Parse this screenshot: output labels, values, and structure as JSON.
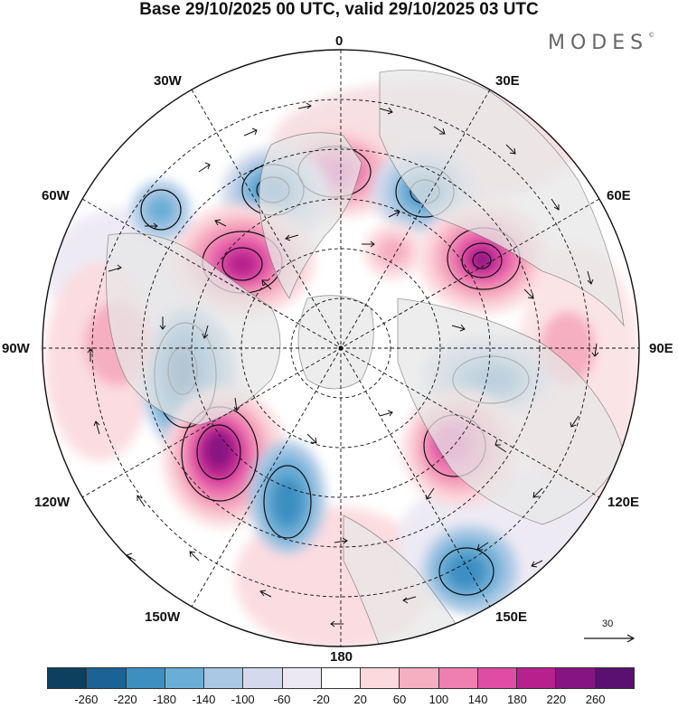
{
  "title": "Base 29/10/2025 00 UTC, valid 29/10/2025 03 UTC",
  "brand": "MODES",
  "brand_mark": "©",
  "longitude_labels": {
    "lon_0": "0",
    "lon_30e": "30E",
    "lon_60e": "60E",
    "lon_90e": "90E",
    "lon_120e": "120E",
    "lon_150e": "150E",
    "lon_180": "180",
    "lon_150w": "150W",
    "lon_120w": "120W",
    "lon_90w": "90W",
    "lon_60w": "60W",
    "lon_30w": "30W"
  },
  "reference_vector": {
    "value": "30"
  },
  "colorbar": {
    "colors": [
      "#0d3f5f",
      "#1a6394",
      "#3d8fc2",
      "#6aaed6",
      "#a8c8e4",
      "#d2daeb",
      "#ebe8f3",
      "#ffffff",
      "#fbd9dd",
      "#f6aec1",
      "#ee7fb0",
      "#e04ca4",
      "#b8208e",
      "#861583",
      "#581071"
    ],
    "tick_labels": [
      "-260",
      "-220",
      "-180",
      "-140",
      "-100",
      "-60",
      "-20",
      "20",
      "60",
      "100",
      "140",
      "180",
      "220",
      "260"
    ]
  },
  "map_features": {
    "projection": "polar-stereographic",
    "pole": "north",
    "anomaly_centers": [
      {
        "name": "positive-anomaly-north-atlantic",
        "sign": "positive",
        "value": 180
      },
      {
        "name": "negative-anomaly-greenland",
        "sign": "negative",
        "value": -200
      },
      {
        "name": "negative-anomaly-barents",
        "sign": "negative",
        "value": -200
      },
      {
        "name": "positive-anomaly-west-siberia",
        "sign": "positive",
        "value": 240
      },
      {
        "name": "positive-anomaly-hudson",
        "sign": "positive",
        "value": 220
      },
      {
        "name": "negative-anomaly-pacific-nw",
        "sign": "negative",
        "value": -200
      },
      {
        "name": "positive-anomaly-gulf-alaska",
        "sign": "positive",
        "value": 260
      },
      {
        "name": "negative-anomaly-east-siberia",
        "sign": "negative",
        "value": -200
      },
      {
        "name": "positive-anomaly-yakutia",
        "sign": "positive",
        "value": 200
      },
      {
        "name": "negative-anomaly-bering",
        "sign": "negative",
        "value": -180
      },
      {
        "name": "negative-anomaly-kamchatka",
        "sign": "negative",
        "value": -180
      }
    ]
  }
}
